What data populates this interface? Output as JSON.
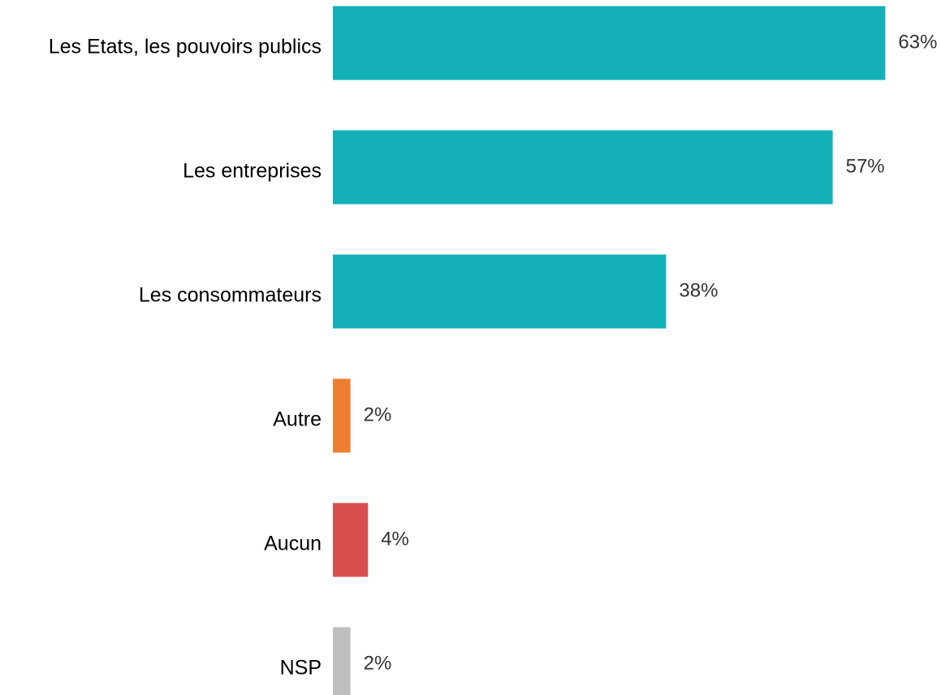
{
  "chart_data": {
    "type": "bar",
    "orientation": "horizontal",
    "categories": [
      "Les Etats, les pouvoirs publics",
      "Les entreprises",
      "Les consommateurs",
      "Autre",
      "Aucun",
      "NSP"
    ],
    "values": [
      63,
      57,
      38,
      2,
      4,
      2
    ],
    "value_labels": [
      "63%",
      "57%",
      "38%",
      "2%",
      "4%",
      "2%"
    ],
    "colors": [
      "#13b0b8",
      "#13b0b8",
      "#13b0b8",
      "#ed7d31",
      "#d94f4f",
      "#bfbfbf"
    ]
  }
}
